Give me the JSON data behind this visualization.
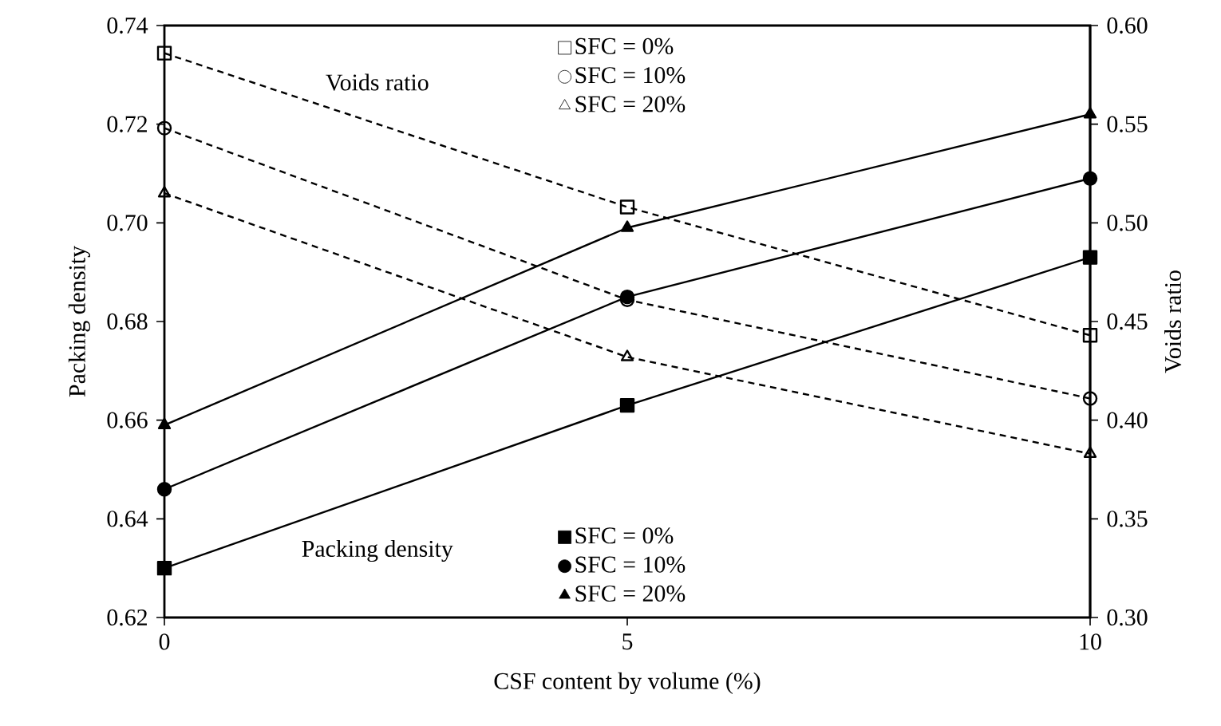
{
  "chart_data": {
    "type": "line",
    "xlabel": "CSF content by volume (%)",
    "ylabel": "Packing density",
    "y2label": "Voids ratio",
    "x": [
      0,
      5,
      10
    ],
    "xlim": [
      0,
      10
    ],
    "xticks": [
      0,
      5,
      10
    ],
    "ylim": [
      0.62,
      0.74
    ],
    "yticks": [
      0.62,
      0.64,
      0.66,
      0.68,
      {
        "value": 0.7,
        "label": "0.70"
      },
      0.72,
      0.74
    ],
    "y2lim": [
      0.3,
      0.6
    ],
    "y2ticks": [
      {
        "value": 0.3,
        "label": "0.30"
      },
      0.35,
      {
        "value": 0.4,
        "label": "0.40"
      },
      0.45,
      {
        "value": 0.5,
        "label": "0.50"
      },
      0.55,
      {
        "value": 0.6,
        "label": "0.60"
      }
    ],
    "series": [
      {
        "name": "SFC = 0%",
        "color": "#000000",
        "values": [
          0.63,
          0.663,
          0.693
        ],
        "marker": "square",
        "line_style": "solid"
      },
      {
        "name": "SFC = 10%",
        "color": "#000000",
        "values": [
          0.646,
          0.685,
          0.709
        ],
        "marker": "circle",
        "line_style": "solid"
      },
      {
        "name": "SFC = 20%",
        "color": "#000000",
        "values": [
          0.659,
          0.699,
          0.722
        ],
        "marker": "triangle",
        "line_style": "solid"
      },
      {
        "name": "SFC = 0%",
        "color": "#000000",
        "values": [
          0.586,
          0.508,
          0.443
        ],
        "marker": "square",
        "line_style": "dashed",
        "axis": "y2"
      },
      {
        "name": "SFC = 10%",
        "color": "#000000",
        "values": [
          0.548,
          0.461,
          0.411
        ],
        "marker": "circle",
        "line_style": "dashed",
        "axis": "y2"
      },
      {
        "name": "SFC = 20%",
        "color": "#000000",
        "values": [
          0.515,
          0.432,
          0.383
        ],
        "marker": "triangle",
        "line_style": "dashed",
        "axis": "y2"
      }
    ],
    "annotations": [
      "Voids ratio",
      "Packing density"
    ],
    "legend": "top",
    "grid": false
  }
}
